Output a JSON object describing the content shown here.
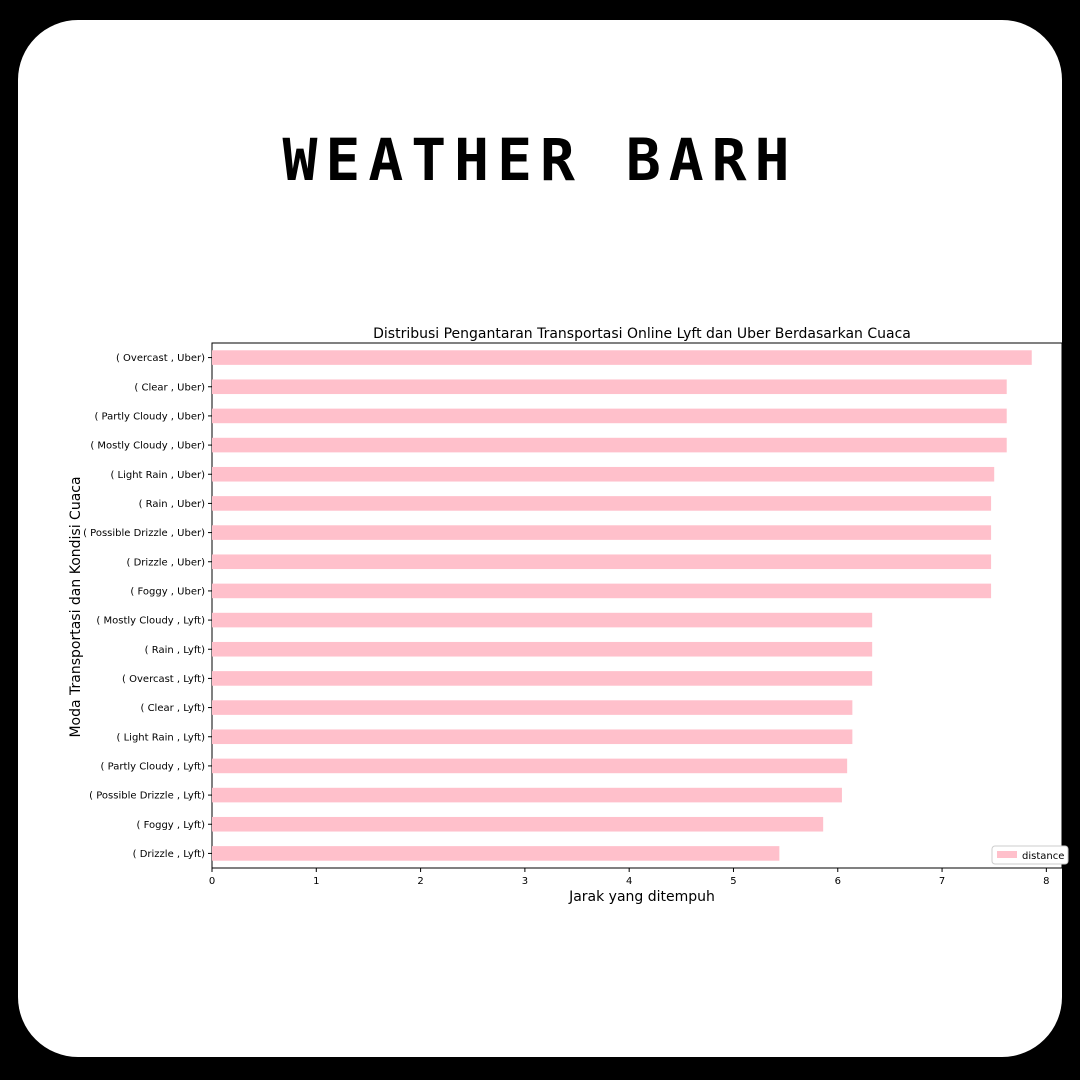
{
  "headline": "WEATHER BARH",
  "chart_data": {
    "type": "bar",
    "orientation": "horizontal",
    "title": "Distribusi Pengantaran Transportasi Online Lyft dan Uber Berdasarkan Cuaca",
    "xlabel": "Jarak yang ditempuh",
    "ylabel": "Moda Transportasi dan Kondisi Cuaca",
    "xlim": [
      0,
      8.15
    ],
    "xticks": [
      0,
      1,
      2,
      3,
      4,
      5,
      6,
      7,
      8
    ],
    "grid": false,
    "legend_position": "bottom-right",
    "bar_color": "#ffc0cb",
    "categories": [
      "( Overcast , Uber)",
      "( Clear , Uber)",
      "( Partly Cloudy , Uber)",
      "( Mostly Cloudy , Uber)",
      "( Light Rain , Uber)",
      "( Rain , Uber)",
      "( Possible Drizzle , Uber)",
      "( Drizzle , Uber)",
      "( Foggy , Uber)",
      "( Mostly Cloudy , Lyft)",
      "( Rain , Lyft)",
      "( Overcast , Lyft)",
      "( Clear , Lyft)",
      "( Light Rain , Lyft)",
      "( Partly Cloudy , Lyft)",
      "( Possible Drizzle , Lyft)",
      "( Foggy , Lyft)",
      "( Drizzle , Lyft)"
    ],
    "series": [
      {
        "name": "distance",
        "values": [
          7.86,
          7.62,
          7.62,
          7.62,
          7.5,
          7.47,
          7.47,
          7.47,
          7.47,
          6.33,
          6.33,
          6.33,
          6.14,
          6.14,
          6.09,
          6.04,
          5.86,
          5.44
        ]
      }
    ]
  }
}
